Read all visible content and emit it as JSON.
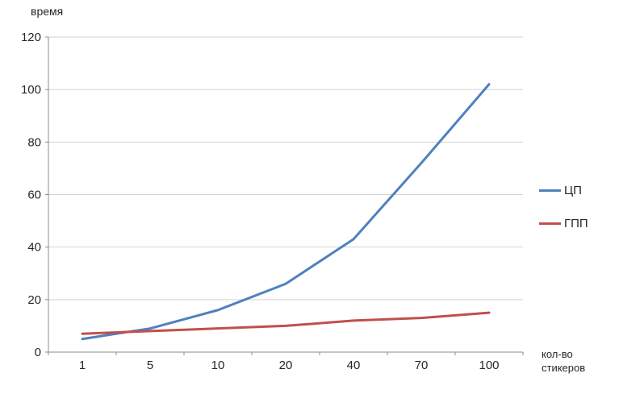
{
  "title": "время",
  "x_axis_title_lines": {
    "line1": "кол-во",
    "line2": "стикеров"
  },
  "chart_data": {
    "type": "line",
    "title": "время",
    "xlabel": "кол-во стикеров",
    "ylabel": "время",
    "categories": [
      "1",
      "5",
      "10",
      "20",
      "40",
      "70",
      "100"
    ],
    "series": [
      {
        "name": "ЦП",
        "color": "#4F81BD",
        "values": [
          5,
          9,
          16,
          26,
          43,
          72,
          102
        ]
      },
      {
        "name": "ГПП",
        "color": "#C0504D",
        "values": [
          7,
          8,
          9,
          10,
          12,
          13,
          15
        ]
      }
    ],
    "ylim": [
      0,
      120
    ],
    "ytick_step": 20,
    "grid": true,
    "legend_position": "right"
  },
  "colors": {
    "grid": "#d3d3d3",
    "axis": "#8c8c8c",
    "text": "#262626"
  }
}
